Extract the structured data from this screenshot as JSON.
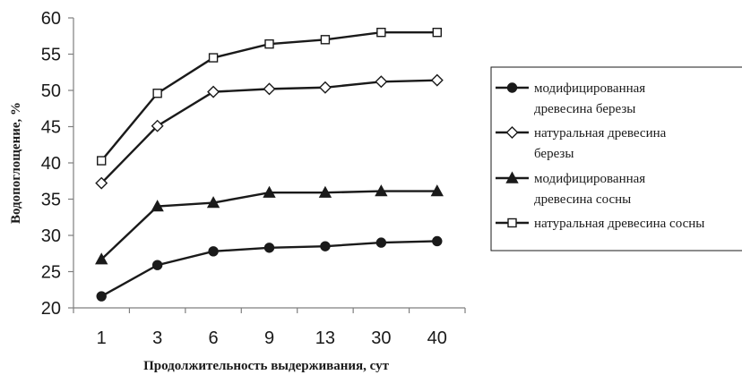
{
  "chart_data": {
    "type": "line",
    "title": "",
    "xlabel": "Продолжительность выдерживания, сут",
    "ylabel": "Водопоглощение, %",
    "categories": [
      "1",
      "3",
      "6",
      "9",
      "13",
      "30",
      "40"
    ],
    "ylim": [
      20,
      60
    ],
    "yticks": [
      20,
      25,
      30,
      35,
      40,
      45,
      50,
      55,
      60
    ],
    "grid": false,
    "legend_position": "right",
    "series": [
      {
        "name_lines": [
          "модифицированная",
          "древесина березы"
        ],
        "marker": "circle",
        "values": [
          21.6,
          25.9,
          27.8,
          28.3,
          28.5,
          29.0,
          29.2
        ]
      },
      {
        "name_lines": [
          "натуральная древесина",
          "березы"
        ],
        "marker": "diamond",
        "values": [
          37.2,
          45.1,
          49.8,
          50.2,
          50.4,
          51.2,
          51.4
        ]
      },
      {
        "name_lines": [
          "модифицированная",
          "древесина сосны"
        ],
        "marker": "triangle",
        "values": [
          26.7,
          34.0,
          34.5,
          35.9,
          35.9,
          36.1,
          36.1
        ]
      },
      {
        "name_lines": [
          "натуральная древесина сосны"
        ],
        "marker": "square",
        "values": [
          40.3,
          49.6,
          54.5,
          56.4,
          57.0,
          58.0,
          58.0
        ]
      }
    ],
    "colors": {
      "line": "#1a1a1a",
      "axis": "#7f7f7f",
      "background": "#ffffff"
    }
  }
}
